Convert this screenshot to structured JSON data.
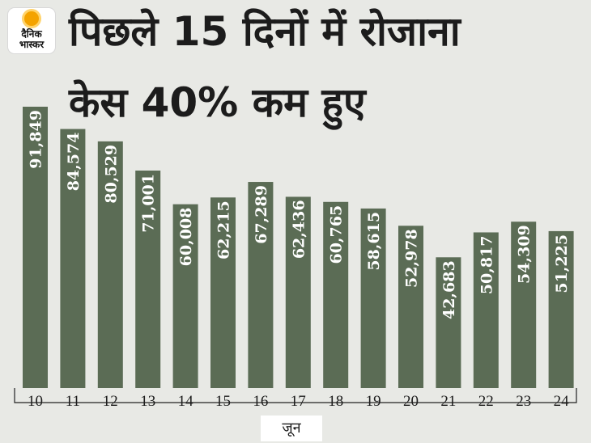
{
  "logo": {
    "line1": "दैनिक",
    "line2": "भास्कर"
  },
  "title": {
    "line1": "पिछले 15 दिनों में रोजाना",
    "line2": "केस 40% कम हुए"
  },
  "colors": {
    "bar": "#5b6c55",
    "background": "#e8e9e5"
  },
  "chart_data": {
    "type": "bar",
    "title": "पिछले 15 दिनों में रोजाना केस 40% कम हुए",
    "xlabel": "जून",
    "ylabel": "",
    "categories": [
      "10",
      "11",
      "12",
      "13",
      "14",
      "15",
      "16",
      "17",
      "18",
      "19",
      "20",
      "21",
      "22",
      "23",
      "24"
    ],
    "values": [
      91849,
      84574,
      80529,
      71001,
      60008,
      62215,
      67289,
      62436,
      60765,
      58615,
      52978,
      42683,
      50817,
      54309,
      51225
    ],
    "value_labels": [
      "91,849",
      "84,574",
      "80,529",
      "71,001",
      "60,008",
      "62,215",
      "67,289",
      "62,436",
      "60,765",
      "58,615",
      "52,978",
      "42,683",
      "50,817",
      "54,309",
      "51,225"
    ],
    "ylim": [
      0,
      91849
    ],
    "grid": false,
    "legend": "none"
  }
}
